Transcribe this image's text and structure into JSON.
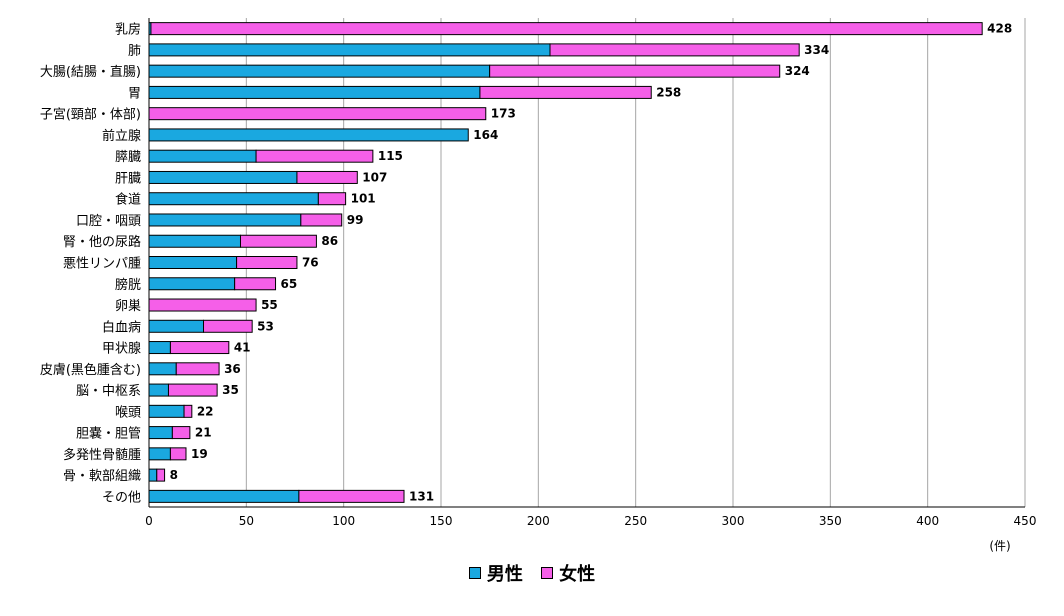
{
  "chart_data": {
    "type": "bar",
    "orientation": "horizontal",
    "stacked": true,
    "categories": [
      "乳房",
      "肺",
      "大腸(結腸・直腸)",
      "胃",
      "子宮(頸部・体部)",
      "前立腺",
      "膵臓",
      "肝臓",
      "食道",
      "口腔・咽頭",
      "腎・他の尿路",
      "悪性リンパ腫",
      "膀胱",
      "卵巣",
      "白血病",
      "甲状腺",
      "皮膚(黒色腫含む)",
      "脳・中枢系",
      "喉頭",
      "胆嚢・胆管",
      "多発性骨髄腫",
      "骨・軟部組織",
      "その他"
    ],
    "series": [
      {
        "name": "男性",
        "color": "#1AA8E0",
        "values": [
          1,
          206,
          175,
          170,
          0,
          164,
          55,
          76,
          87,
          78,
          47,
          45,
          44,
          0,
          28,
          11,
          14,
          10,
          18,
          12,
          11,
          4,
          77
        ]
      },
      {
        "name": "女性",
        "color": "#F55FE8",
        "values": [
          427,
          128,
          149,
          88,
          173,
          0,
          60,
          31,
          14,
          21,
          39,
          31,
          21,
          55,
          25,
          30,
          22,
          25,
          4,
          9,
          8,
          4,
          54
        ]
      }
    ],
    "totals": [
      428,
      334,
      324,
      258,
      173,
      164,
      115,
      107,
      101,
      99,
      86,
      76,
      65,
      55,
      53,
      41,
      36,
      35,
      22,
      21,
      19,
      8,
      131
    ],
    "xlim": [
      0,
      450
    ],
    "xticks": [
      0,
      50,
      100,
      150,
      200,
      250,
      300,
      350,
      400,
      450
    ],
    "xunit": "(件)",
    "grid": true,
    "legend_position": "bottom"
  }
}
